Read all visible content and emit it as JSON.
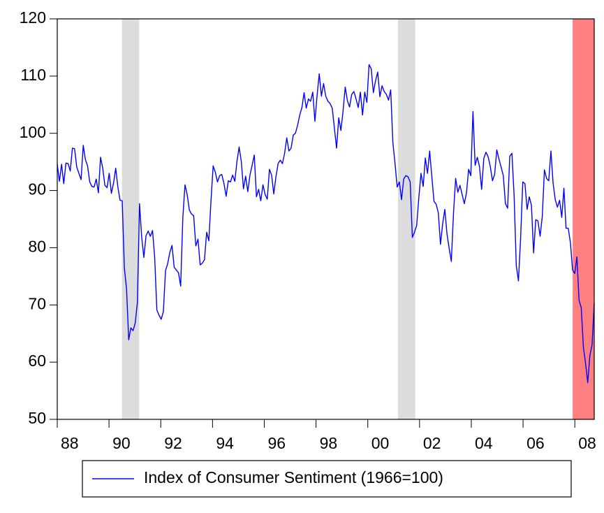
{
  "chart_data": {
    "type": "line",
    "xlim": [
      1988,
      2008.75
    ],
    "xticks": [
      {
        "value": 1988,
        "label": "88"
      },
      {
        "value": 1990,
        "label": "90"
      },
      {
        "value": 1992,
        "label": "92"
      },
      {
        "value": 1994,
        "label": "94"
      },
      {
        "value": 1996,
        "label": "96"
      },
      {
        "value": 1998,
        "label": "98"
      },
      {
        "value": 2000,
        "label": "00"
      },
      {
        "value": 2002,
        "label": "02"
      },
      {
        "value": 2004,
        "label": "04"
      },
      {
        "value": 2006,
        "label": "06"
      },
      {
        "value": 2008,
        "label": "08"
      }
    ],
    "ylim": [
      50,
      120
    ],
    "yticks": [
      50,
      60,
      70,
      80,
      90,
      100,
      110,
      120
    ],
    "shading": [
      {
        "from": 1990.5,
        "to": 1991.1667,
        "color": "#dcdcdc"
      },
      {
        "from": 2001.1667,
        "to": 2001.8333,
        "color": "#dcdcdc"
      },
      {
        "from": 2007.9167,
        "to": 2008.75,
        "color": "#ff8080"
      }
    ],
    "legend": "bottom",
    "series": [
      {
        "name": "Index of Consumer Sentiment (1966=100)",
        "color": "#0000ff",
        "values": [
          94.6,
          91.6,
          94.6,
          91.2,
          94.8,
          94.7,
          93.4,
          97.4,
          97.3,
          94.1,
          93.0,
          91.9,
          97.9,
          95.4,
          94.3,
          91.5,
          90.7,
          90.6,
          92.0,
          89.6,
          95.8,
          93.9,
          90.9,
          90.5,
          93.0,
          89.5,
          91.3,
          93.9,
          90.6,
          88.3,
          88.2,
          76.4,
          72.8,
          63.9,
          66.0,
          65.5,
          66.8,
          70.4,
          87.7,
          81.8,
          78.3,
          82.1,
          82.9,
          82.0,
          83.0,
          78.3,
          69.1,
          68.2,
          67.5,
          68.8,
          76.0,
          77.2,
          79.2,
          80.4,
          76.6,
          76.1,
          75.6,
          73.3,
          85.3,
          91.0,
          89.3,
          86.6,
          85.9,
          85.6,
          80.3,
          81.5,
          77.0,
          77.3,
          77.9,
          82.7,
          81.2,
          88.2,
          94.3,
          93.2,
          91.5,
          92.6,
          92.8,
          91.2,
          89.0,
          91.7,
          91.5,
          92.7,
          91.6,
          95.1,
          97.6,
          95.1,
          90.3,
          92.5,
          89.8,
          92.7,
          94.4,
          96.2,
          88.9,
          90.2,
          88.2,
          91.0,
          89.3,
          88.5,
          93.7,
          92.7,
          89.4,
          92.4,
          94.7,
          95.3,
          94.7,
          96.5,
          99.2,
          96.9,
          97.4,
          99.7,
          100.0,
          101.4,
          103.2,
          104.5,
          107.1,
          104.4,
          106.0,
          105.6,
          107.2,
          102.1,
          106.6,
          110.4,
          106.5,
          108.7,
          106.5,
          105.6,
          105.2,
          104.4,
          100.9,
          97.4,
          102.7,
          100.5,
          103.9,
          108.1,
          105.7,
          104.6,
          106.8,
          107.3,
          106.0,
          104.5,
          107.2,
          103.2,
          107.2,
          105.4,
          112.0,
          111.3,
          107.1,
          109.2,
          110.7,
          106.4,
          108.3,
          107.3,
          106.8,
          105.8,
          107.6,
          98.4,
          94.7,
          90.6,
          91.5,
          88.4,
          92.0,
          92.6,
          92.4,
          91.5,
          81.8,
          82.7,
          83.9,
          88.8,
          93.0,
          90.7,
          95.7,
          93.0,
          96.9,
          92.4,
          88.1,
          87.6,
          86.1,
          80.6,
          84.2,
          86.7,
          82.4,
          79.9,
          77.6,
          86.0,
          92.1,
          89.7,
          90.9,
          89.3,
          87.7,
          89.6,
          93.7,
          92.6,
          103.8,
          94.4,
          95.8,
          94.2,
          90.2,
          95.6,
          96.7,
          95.9,
          94.2,
          91.7,
          92.8,
          97.1,
          95.5,
          94.1,
          92.6,
          87.7,
          86.9,
          96.0,
          96.5,
          89.1,
          76.9,
          74.2,
          81.6,
          91.5,
          91.2,
          86.7,
          88.9,
          87.4,
          79.1,
          84.9,
          84.7,
          82.0,
          85.4,
          93.6,
          92.1,
          91.7,
          96.9,
          91.3,
          88.4,
          87.1,
          88.3,
          85.3,
          90.4,
          83.4,
          83.4,
          80.9,
          76.1,
          75.5,
          78.4,
          70.8,
          69.5,
          62.6,
          59.8,
          56.4,
          61.2,
          63.0,
          70.3
        ]
      }
    ]
  }
}
